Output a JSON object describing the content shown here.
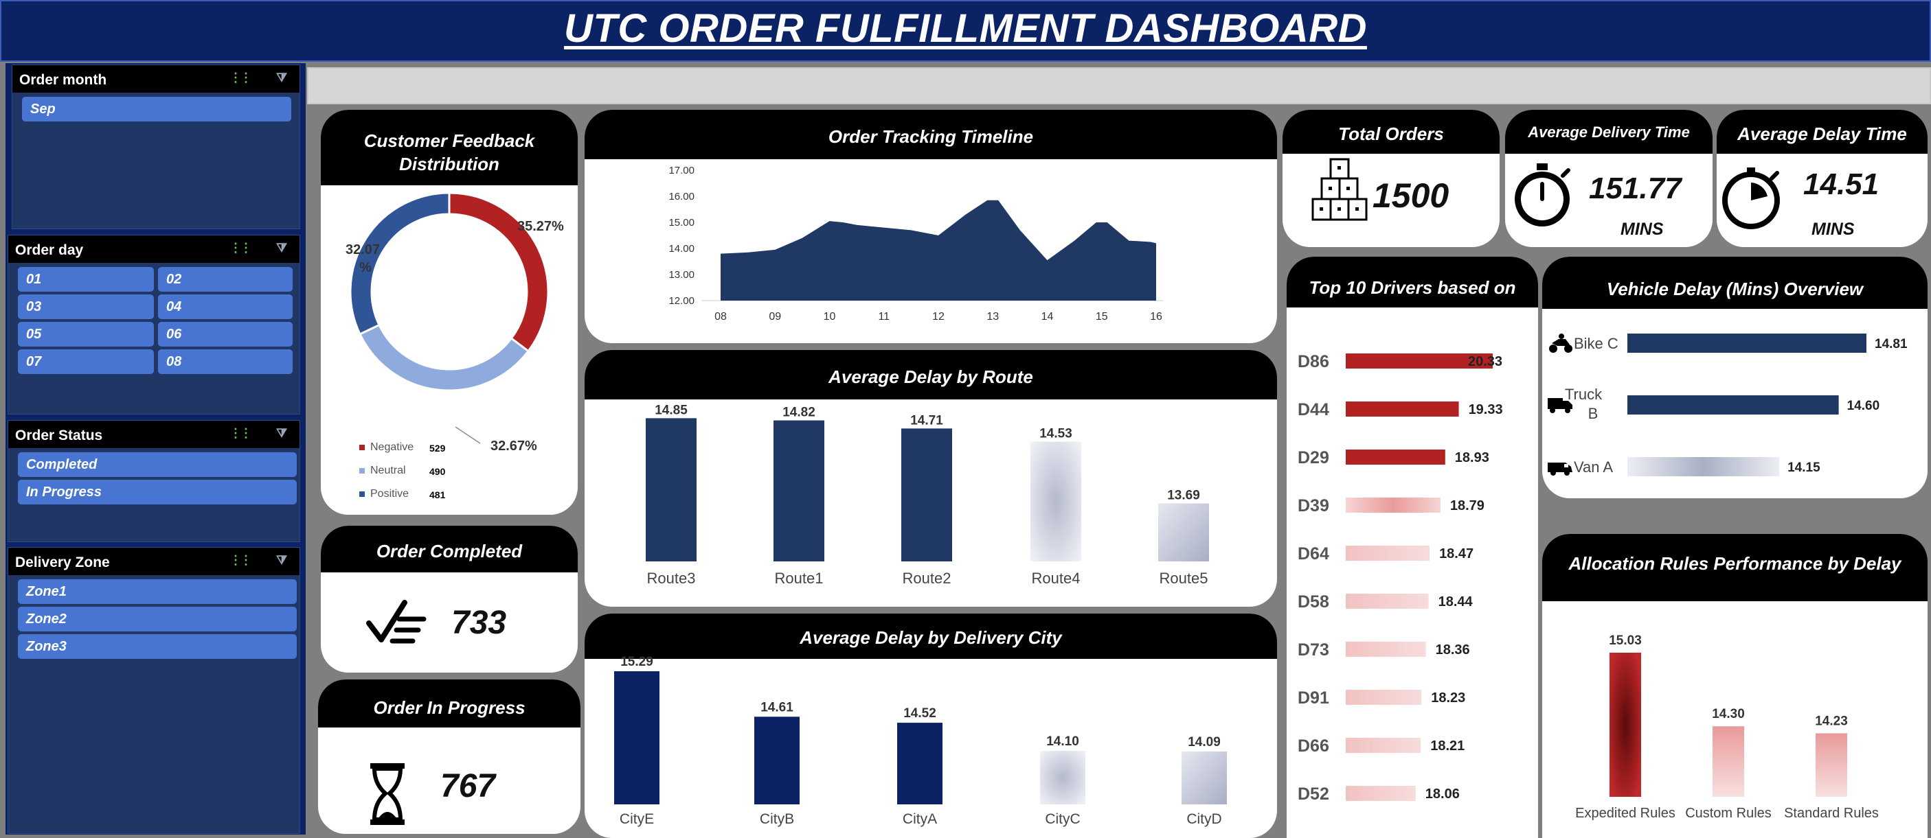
{
  "header": {
    "title": "UTC ORDER FULFILLMENT DASHBOARD"
  },
  "slicers": {
    "order_month": {
      "title": "Order month",
      "items": [
        "Sep"
      ]
    },
    "order_day": {
      "title": "Order day",
      "items": [
        "01",
        "02",
        "03",
        "04",
        "05",
        "06",
        "07",
        "08"
      ]
    },
    "order_status": {
      "title": "Order Status",
      "items": [
        "Completed",
        "In Progress"
      ]
    },
    "delivery_zone": {
      "title": "Delivery Zone",
      "items": [
        "Zone1",
        "Zone2",
        "Zone3"
      ]
    }
  },
  "kpis": {
    "total_orders": {
      "title": "Total Orders",
      "value": "1500",
      "icon": "boxes-icon"
    },
    "avg_delivery_time": {
      "title": "Average Delivery Time",
      "value": "151.77",
      "unit": "MINS",
      "icon": "stopwatch-icon"
    },
    "avg_delay_time": {
      "title": "Average Delay Time",
      "value": "14.51",
      "unit": "MINS",
      "icon": "timer-icon"
    },
    "order_completed": {
      "title": "Order Completed",
      "value": "733",
      "icon": "checklist-icon"
    },
    "order_in_progress": {
      "title": "Order In Progress",
      "value": "767",
      "icon": "hourglass-icon"
    }
  },
  "colors": {
    "navy": "#0b2265",
    "bar_navy": "#203864",
    "red": "#b22222",
    "blue_mid": "#4874d2"
  },
  "chart_data": [
    {
      "id": "feedback",
      "type": "pie",
      "title": "Customer Feedback Distribution",
      "categories": [
        "Negative",
        "Neutral",
        "Positive"
      ],
      "values": [
        529,
        490,
        481
      ],
      "data_labels": [
        "35.27%",
        "32.67%",
        "32.07 %"
      ],
      "colors": [
        "#b22222",
        "#8faadc",
        "#2f5597"
      ],
      "legend": "bottom-left"
    },
    {
      "id": "timeline",
      "type": "area",
      "title": "Order Tracking Timeline",
      "categories": [
        "08",
        "09",
        "10",
        "11",
        "12",
        "13",
        "14",
        "15",
        "16"
      ],
      "x": [
        8.0,
        8.5,
        9.0,
        9.5,
        10.0,
        10.25,
        10.5,
        11.0,
        11.5,
        12.0,
        12.5,
        12.9,
        13.1,
        13.5,
        14.0,
        14.5,
        14.9,
        15.1,
        15.5,
        15.9,
        16.0
      ],
      "values": [
        13.8,
        13.85,
        13.95,
        14.4,
        15.05,
        15.0,
        14.9,
        14.8,
        14.7,
        14.5,
        15.3,
        15.85,
        15.85,
        14.7,
        13.55,
        14.3,
        15.0,
        15.0,
        14.3,
        14.25,
        14.2
      ],
      "ylim": [
        12.0,
        17.0
      ],
      "yticks": [
        "12.00",
        "13.00",
        "14.00",
        "15.00",
        "16.00",
        "17.00"
      ],
      "color": "#203864"
    },
    {
      "id": "route",
      "type": "bar",
      "title": "Average Delay by Route",
      "categories": [
        "Route3",
        "Route1",
        "Route2",
        "Route4",
        "Route5"
      ],
      "values": [
        14.85,
        14.82,
        14.71,
        14.53,
        13.69
      ],
      "data_labels": [
        "14.85",
        "14.82",
        "14.71",
        "14.53",
        "13.69"
      ],
      "ylim": [
        12.9,
        14.9
      ]
    },
    {
      "id": "city",
      "type": "bar",
      "title": "Average Delay by Delivery City",
      "categories": [
        "CityE",
        "CityB",
        "CityA",
        "CityC",
        "CityD"
      ],
      "values": [
        15.29,
        14.61,
        14.52,
        14.1,
        14.09
      ],
      "data_labels": [
        "15.29",
        "14.61",
        "14.52",
        "14.10",
        "14.09"
      ],
      "ylim": [
        13.3,
        15.29
      ]
    },
    {
      "id": "drivers",
      "type": "bar",
      "orientation": "horizontal",
      "title": "Top 10 Drivers based on",
      "categories": [
        "D86",
        "D44",
        "D29",
        "D39",
        "D64",
        "D58",
        "D73",
        "D91",
        "D66",
        "D52"
      ],
      "values": [
        20.33,
        19.33,
        18.93,
        18.79,
        18.47,
        18.44,
        18.36,
        18.23,
        18.21,
        18.06
      ],
      "data_labels": [
        "20.33",
        "19.33",
        "18.93",
        "18.79",
        "18.47",
        "18.44",
        "18.36",
        "18.23",
        "18.21",
        "18.06"
      ],
      "xlim": [
        16.0,
        20.33
      ]
    },
    {
      "id": "vehicle",
      "type": "bar",
      "orientation": "horizontal",
      "title": "Vehicle Delay (Mins) Overview",
      "categories": [
        "Bike C",
        "Truck B",
        "Van A"
      ],
      "icons": [
        "motorbike-icon",
        "truck-icon",
        "van-icon"
      ],
      "values": [
        14.81,
        14.6,
        14.15
      ],
      "data_labels": [
        "14.81",
        "14.60",
        "14.15"
      ],
      "xlim": [
        13.0,
        14.81
      ]
    },
    {
      "id": "allocation",
      "type": "bar",
      "title": "Allocation Rules Performance by Delay",
      "categories": [
        "Expedited Rules",
        "Custom Rules",
        "Standard Rules"
      ],
      "values": [
        15.03,
        14.3,
        14.23
      ],
      "data_labels": [
        "15.03",
        "14.30",
        "14.23"
      ],
      "ylim": [
        13.6,
        15.03
      ]
    }
  ]
}
